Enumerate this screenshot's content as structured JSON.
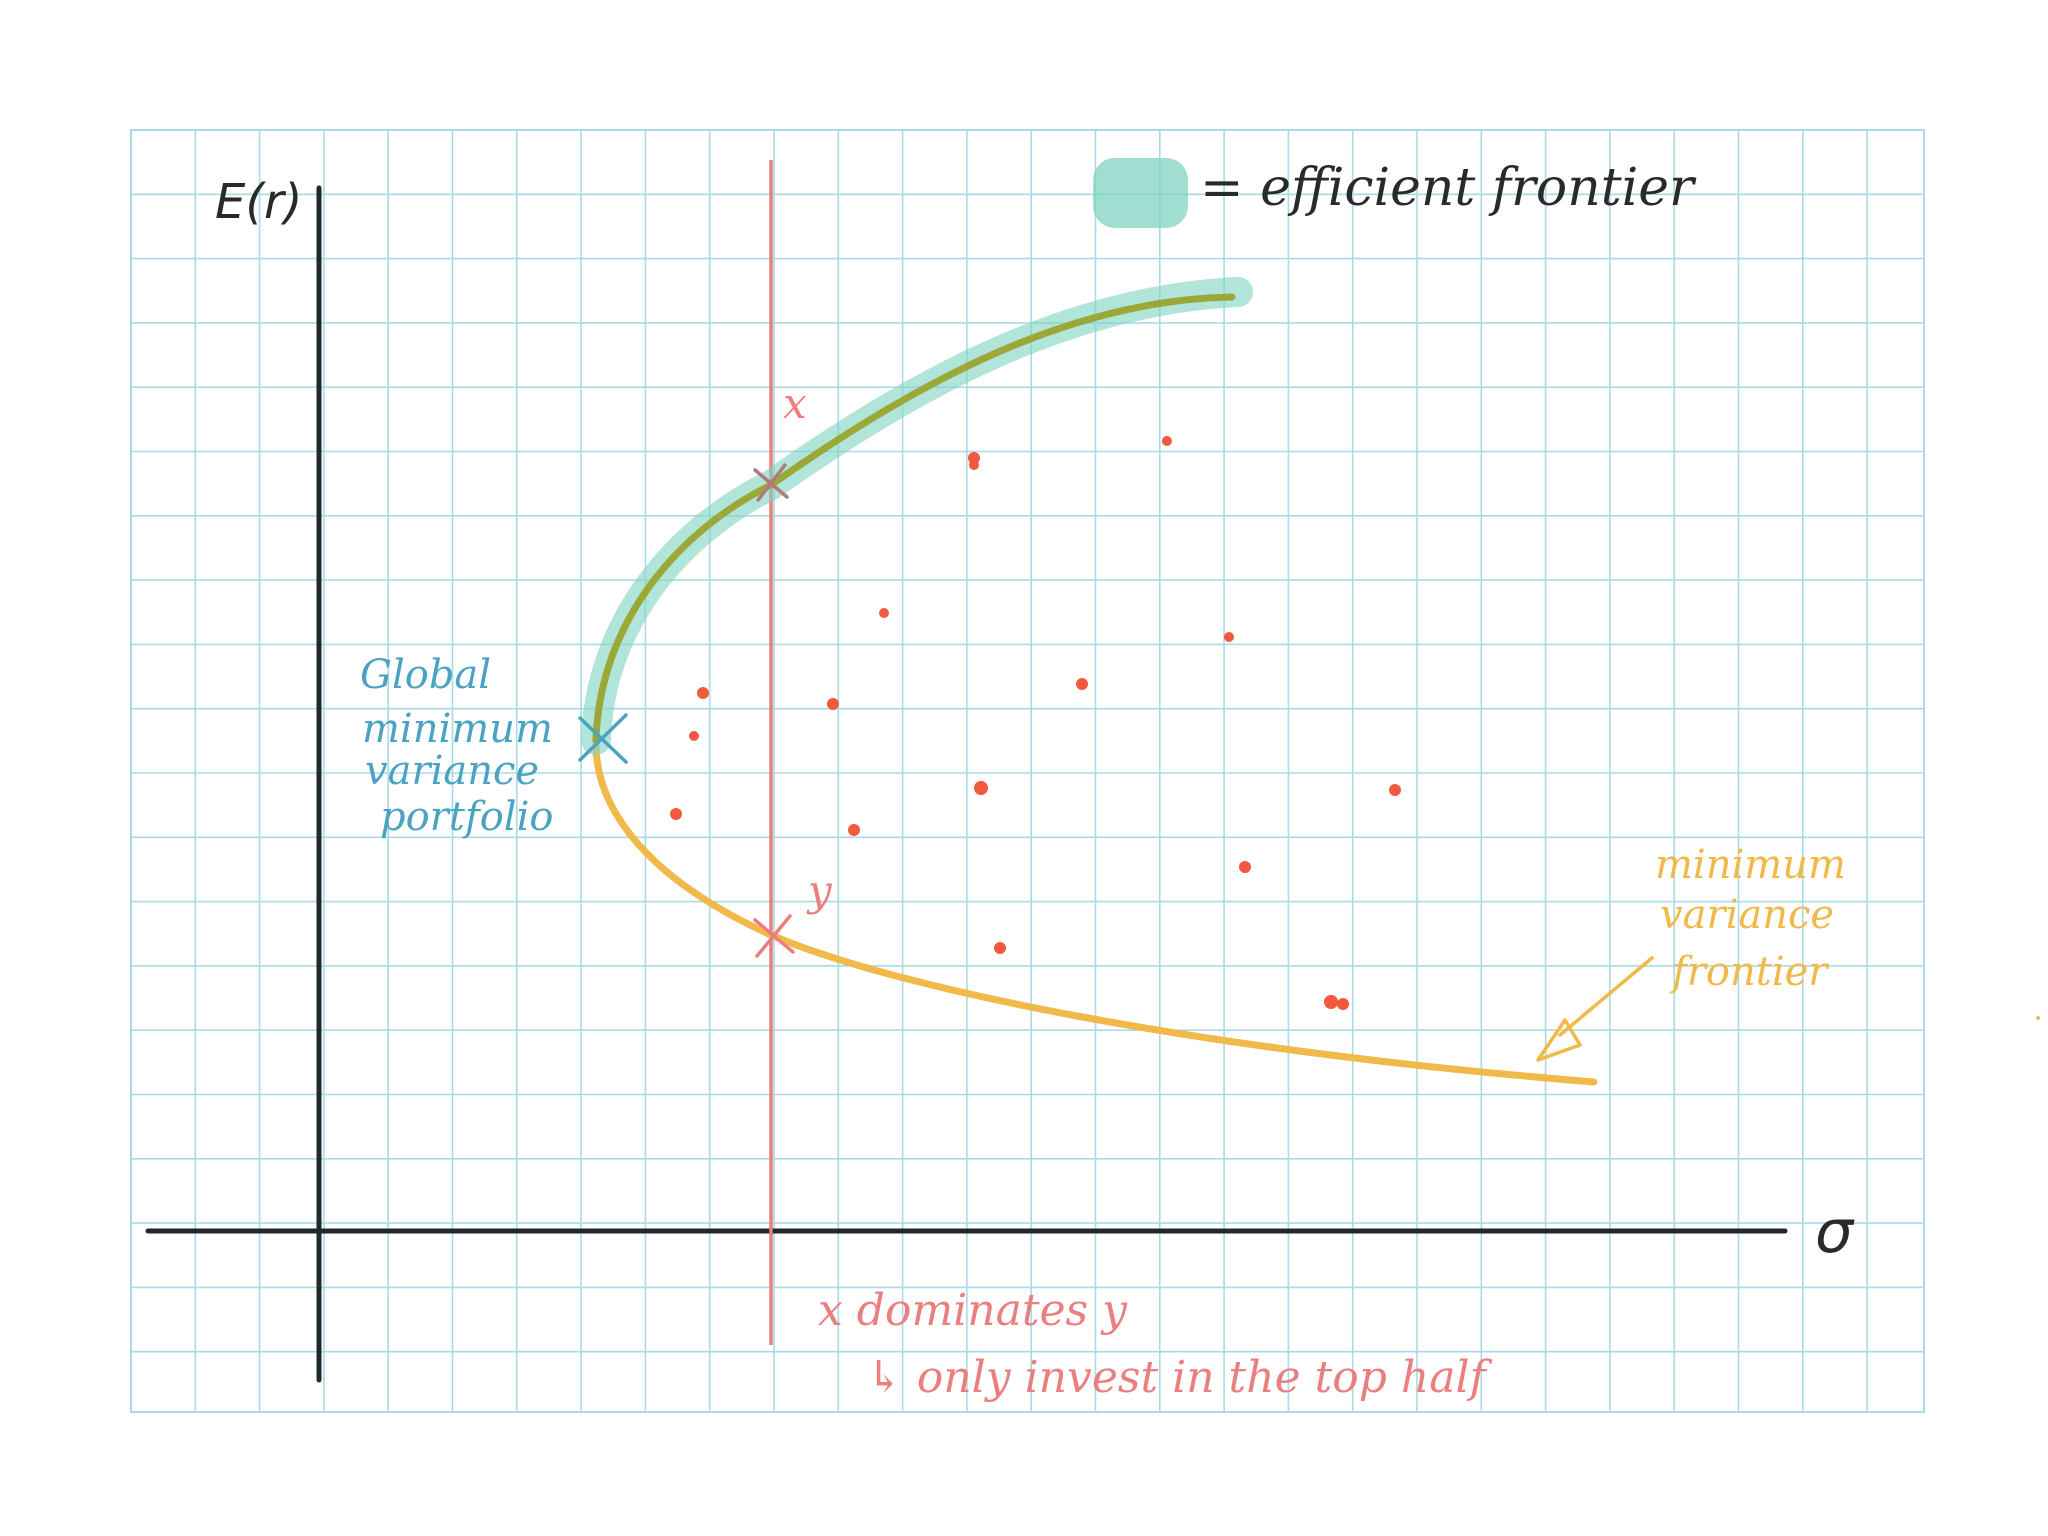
{
  "axes": {
    "y_label": "E(r)",
    "x_label": "σ"
  },
  "legend": {
    "label": "= efficient frontier",
    "swatch_color": "#7fd3c1"
  },
  "labels": {
    "gmv": [
      "Global",
      "minimum",
      "variance",
      "portfolio"
    ],
    "mvf": [
      "minimum",
      "variance",
      "frontier"
    ],
    "point_x": "x",
    "point_y": "y",
    "note_line1": "x dominates y",
    "note_line2": "↳ only invest in the top half"
  },
  "colors": {
    "grid": "#a9dbe6",
    "axis": "#1f2a2a",
    "frontier": "#f0b94a",
    "efficient_core": "#9ba838",
    "efficient_glow": "#7fd3c1",
    "red": "#ea7f7f",
    "dots": "#f2593f",
    "gmv": "#4aa3c2",
    "mvf": "#f0b94a"
  }
}
